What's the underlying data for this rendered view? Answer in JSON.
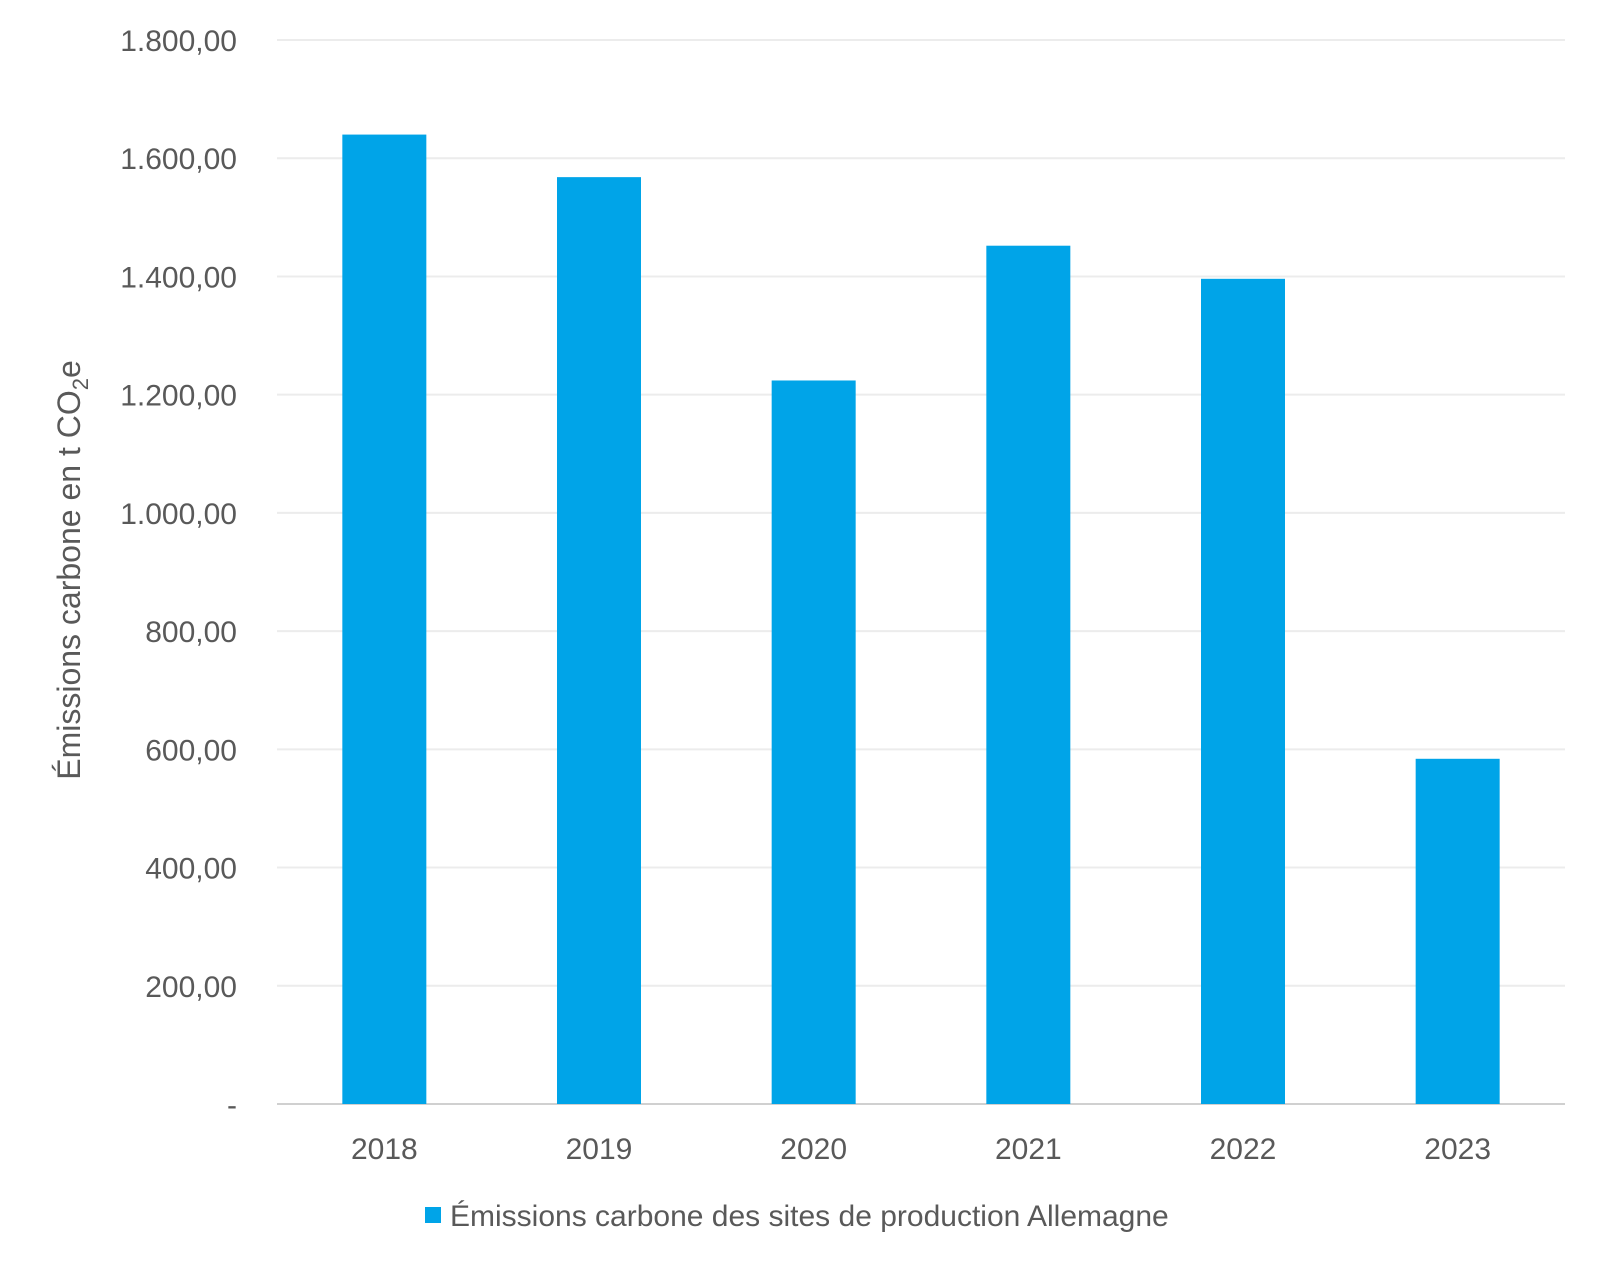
{
  "chart_data": {
    "type": "bar",
    "categories": [
      "2018",
      "2019",
      "2020",
      "2021",
      "2022",
      "2023"
    ],
    "series": [
      {
        "name": "Émissions carbone des sites de production Allemagne",
        "values": [
          1640,
          1568,
          1224,
          1452,
          1396,
          584
        ],
        "color": "#00a4e8"
      }
    ],
    "ylabel_main": "Émissions carbone en t CO",
    "ylabel_sub": "2",
    "ylabel_tail": "e",
    "ylim": [
      0,
      1800
    ],
    "yticks": [
      {
        "value": 0,
        "label": "-"
      },
      {
        "value": 200,
        "label": "200,00"
      },
      {
        "value": 400,
        "label": "400,00"
      },
      {
        "value": 600,
        "label": "600,00"
      },
      {
        "value": 800,
        "label": "800,00"
      },
      {
        "value": 1000,
        "label": "1.000,00"
      },
      {
        "value": 1200,
        "label": "1.200,00"
      },
      {
        "value": 1400,
        "label": "1.400,00"
      },
      {
        "value": 1600,
        "label": "1.600,00"
      },
      {
        "value": 1800,
        "label": "1.800,00"
      }
    ],
    "grid": true,
    "legend_position": "bottom"
  }
}
